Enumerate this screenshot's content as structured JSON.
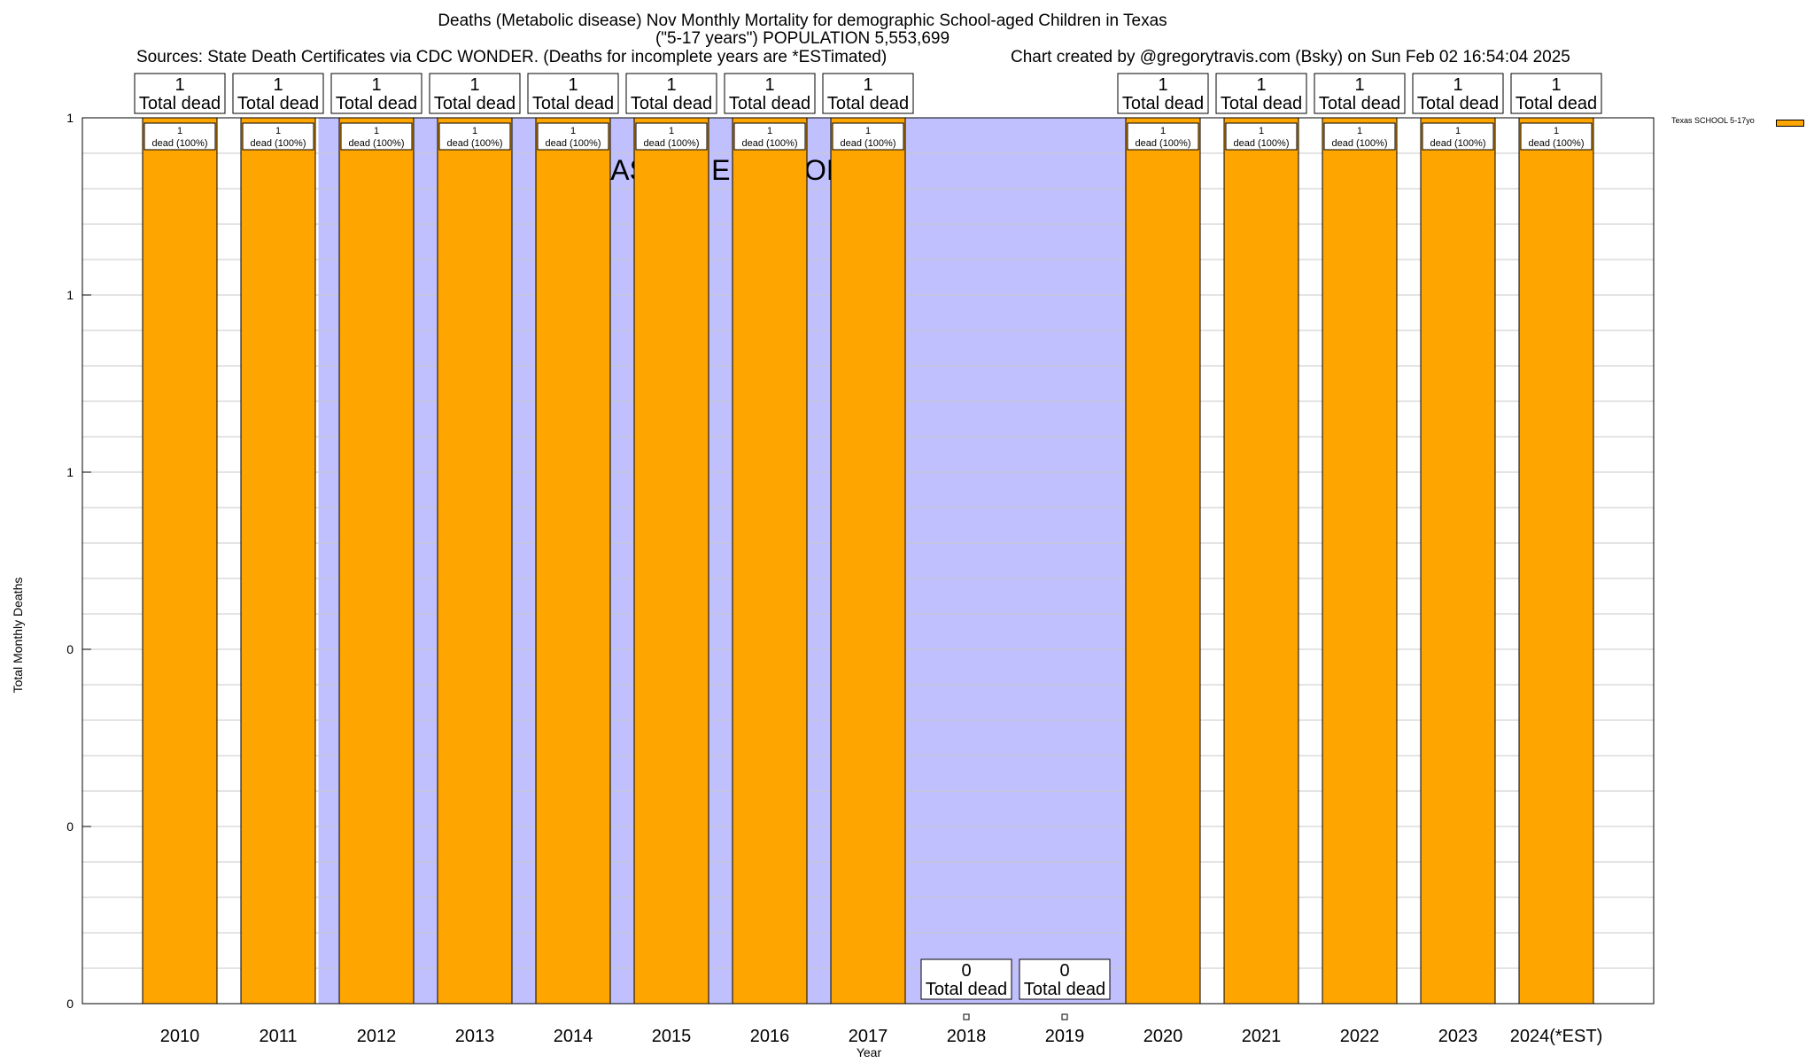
{
  "chart_data": {
    "type": "bar",
    "title_line1": "Deaths (Metabolic disease) Nov Monthly Mortality for demographic School-aged Children in Texas",
    "title_line2": "(\"5-17 years\") POPULATION 5,553,699",
    "subtitle_left": "Sources: State Death Certificates via CDC WONDER. (Deaths for incomplete years are *ESTimated)",
    "subtitle_right": "Chart created by @gregorytravis.com (Bsky) on Sun Feb 02 16:54:04 2025",
    "xlabel": "Year",
    "ylabel": "Total Monthly Deaths",
    "categories": [
      "2010",
      "2011",
      "2012",
      "2013",
      "2014",
      "2015",
      "2016",
      "2017",
      "2018",
      "2019",
      "2020",
      "2021",
      "2022",
      "2023",
      "2024(*EST)"
    ],
    "series": [
      {
        "name": "Texas SCHOOL 5-17yo",
        "color": "#ffa500",
        "values": [
          1,
          1,
          1,
          1,
          1,
          1,
          1,
          1,
          0,
          0,
          1,
          1,
          1,
          1,
          1
        ]
      }
    ],
    "total_labels": [
      "1",
      "1",
      "1",
      "1",
      "1",
      "1",
      "1",
      "1",
      "0",
      "0",
      "1",
      "1",
      "1",
      "1",
      "1"
    ],
    "total_suffix": "Total dead",
    "inner_labels": [
      "dead (100%)",
      "dead (100%)",
      "dead (100%)",
      "dead (100%)",
      "dead (100%)",
      "dead (100%)",
      "dead (100%)",
      "dead (100%)",
      "",
      "",
      "dead (100%)",
      "dead (100%)",
      "dead (100%)",
      "dead (100%)",
      "dead (100%)"
    ],
    "ytick_labels": [
      "0",
      "0",
      "0",
      "1",
      "1",
      "1"
    ],
    "ylim": [
      0,
      1
    ],
    "baseline_label": "BASELINE PERIOD",
    "baseline_color": "#c0c0ff",
    "baseline_categories": [
      "2012",
      "2013",
      "2014",
      "2015",
      "2016",
      "2017",
      "2018",
      "2019"
    ],
    "grid": true,
    "legend_position": "top-right"
  }
}
